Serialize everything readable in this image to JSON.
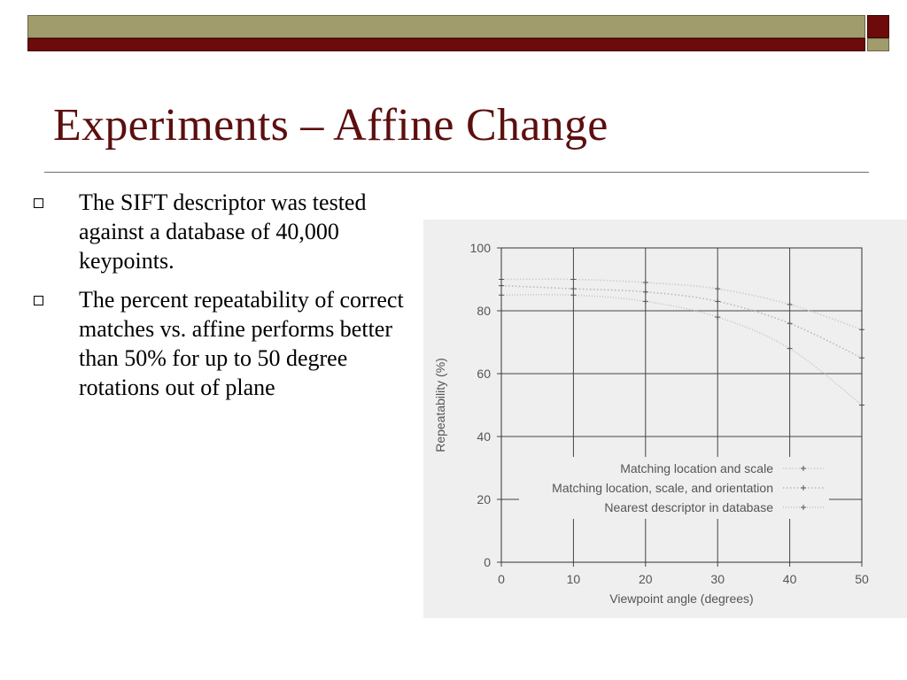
{
  "slide": {
    "title": "Experiments – Affine Change",
    "bullets": [
      "The SIFT descriptor was tested against a database of 40,000 keypoints.",
      "The percent repeatability of correct matches vs. affine performs better than 50% for up to 50 degree rotations out of plane"
    ]
  },
  "colors": {
    "title": "#5c0f0f",
    "bar_olive": "#a09c6b",
    "bar_maroon": "#6d0a0a"
  },
  "chart_data": {
    "type": "line",
    "title": "",
    "xlabel": "Viewpoint angle (degrees)",
    "ylabel": "Repeatability (%)",
    "x": [
      0,
      10,
      20,
      30,
      40,
      50
    ],
    "xticks": [
      0,
      10,
      20,
      30,
      40,
      50
    ],
    "yticks": [
      0,
      20,
      40,
      60,
      80,
      100
    ],
    "xlim": [
      0,
      50
    ],
    "ylim": [
      0,
      100
    ],
    "grid": true,
    "legend_position": "lower-right",
    "series": [
      {
        "name": "Matching location and scale",
        "values": [
          90,
          90,
          89,
          87,
          82,
          74
        ]
      },
      {
        "name": "Matching location, scale, and orientation",
        "values": [
          88,
          87,
          86,
          83,
          76,
          65
        ]
      },
      {
        "name": "Nearest descriptor in database",
        "values": [
          85,
          85,
          83,
          78,
          68,
          50
        ]
      }
    ]
  }
}
